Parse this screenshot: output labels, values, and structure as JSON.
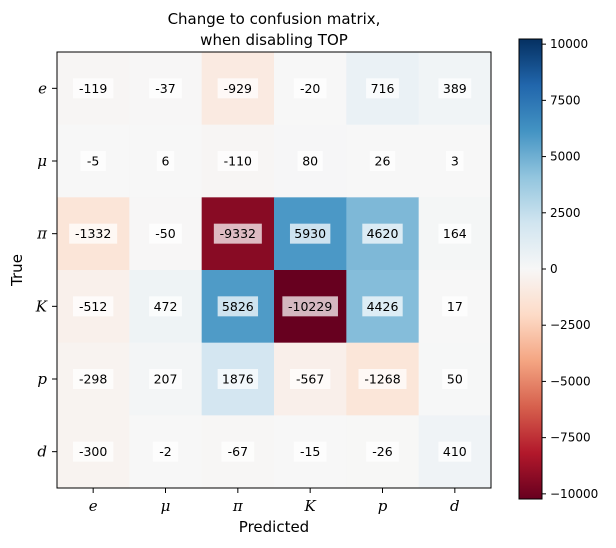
{
  "chart_data": {
    "type": "heatmap",
    "title_lines": [
      "Change to confusion matrix,",
      "when disabling TOP"
    ],
    "xlabel": "Predicted",
    "ylabel": "True",
    "x_categories": [
      "e",
      "μ",
      "π",
      "K",
      "p",
      "d"
    ],
    "y_categories": [
      "e",
      "μ",
      "π",
      "K",
      "p",
      "d"
    ],
    "values": [
      [
        -119,
        -37,
        -929,
        -20,
        716,
        389
      ],
      [
        -5,
        6,
        -110,
        80,
        26,
        3
      ],
      [
        -1332,
        -50,
        -9332,
        5930,
        4620,
        164
      ],
      [
        -512,
        472,
        5826,
        -10229,
        4426,
        17
      ],
      [
        -298,
        207,
        1876,
        -567,
        -1268,
        50
      ],
      [
        -300,
        -2,
        -67,
        -15,
        -26,
        410
      ]
    ],
    "colormap": "RdBu",
    "vmin": -10229,
    "vmax": 10229,
    "colorbar_ticks": [
      10000,
      7500,
      5000,
      2500,
      0,
      -2500,
      -5000,
      -7500,
      -10000
    ],
    "colorbar_tick_labels": [
      "10000",
      "7500",
      "5000",
      "2500",
      "0",
      "−2500",
      "−5000",
      "−7500",
      "−10000"
    ],
    "colormap_stops": [
      "#67001f",
      "#b2182b",
      "#d6604d",
      "#f4a582",
      "#fddbc7",
      "#f7f7f7",
      "#d1e5f0",
      "#92c5de",
      "#4393c3",
      "#2166ac",
      "#053061"
    ]
  }
}
